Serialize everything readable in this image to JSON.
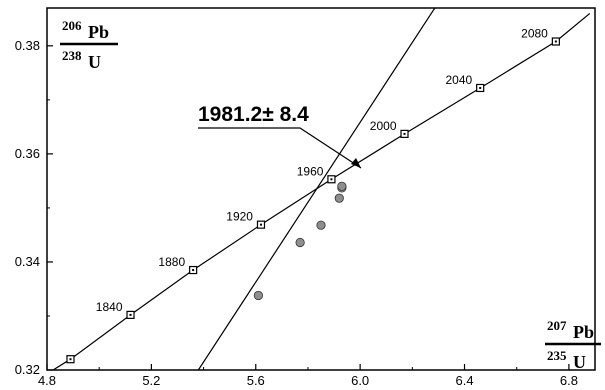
{
  "chart_data": {
    "type": "scatter",
    "title": "",
    "xlim": [
      4.8,
      6.9
    ],
    "ylim": [
      0.32,
      0.387
    ],
    "x_ticks": [
      4.8,
      5.2,
      5.6,
      6.0,
      6.4,
      6.8
    ],
    "x_tick_labels": [
      "4.8",
      "5.2",
      "5.6",
      "6.0",
      "6.4",
      "6.8"
    ],
    "y_ticks": [
      0.32,
      0.34,
      0.36,
      0.38
    ],
    "y_tick_labels": [
      "0.32",
      "0.34",
      "0.36",
      "0.38"
    ],
    "grid": false,
    "ylabel": {
      "num_sup": "206",
      "num_el": "Pb",
      "den_sup": "238",
      "den_el": "U"
    },
    "xlabel": {
      "num_sup": "207",
      "num_el": "Pb",
      "den_sup": "235",
      "den_el": "U"
    },
    "concordia": {
      "x": [
        4.7,
        4.89,
        5.12,
        5.36,
        5.62,
        5.89,
        6.17,
        6.46,
        6.75,
        6.88
      ],
      "y": [
        0.3163,
        0.322,
        0.3302,
        0.3385,
        0.3469,
        0.3553,
        0.3637,
        0.3722,
        0.3808,
        0.386
      ]
    },
    "age_markers": [
      {
        "label": "1840",
        "x": 5.12,
        "y": 0.3302
      },
      {
        "label": "1880",
        "x": 5.36,
        "y": 0.3385
      },
      {
        "label": "1920",
        "x": 5.62,
        "y": 0.3469
      },
      {
        "label": "1960",
        "x": 5.89,
        "y": 0.3553
      },
      {
        "label": "2000",
        "x": 6.17,
        "y": 0.3637
      },
      {
        "label": "2040",
        "x": 6.46,
        "y": 0.3722
      },
      {
        "label": "2080",
        "x": 6.75,
        "y": 0.3808
      }
    ],
    "unlabeled_markers": [
      {
        "x": 4.89,
        "y": 0.322
      }
    ],
    "discordia": {
      "x": [
        5.38,
        6.32
      ],
      "y": [
        0.32,
        0.3895
      ]
    },
    "samples": {
      "x": [
        5.61,
        5.77,
        5.85,
        5.92,
        5.93,
        5.93
      ],
      "y": [
        0.3338,
        0.3436,
        0.3468,
        0.3518,
        0.3537,
        0.354
      ]
    },
    "intercept": {
      "x": 6.04,
      "y": 0.3601
    },
    "annotation": "1981.2± 8.4"
  },
  "colors": {
    "line": "#000000",
    "sample_fill": "#8e8e8e",
    "axis": "#000000"
  }
}
